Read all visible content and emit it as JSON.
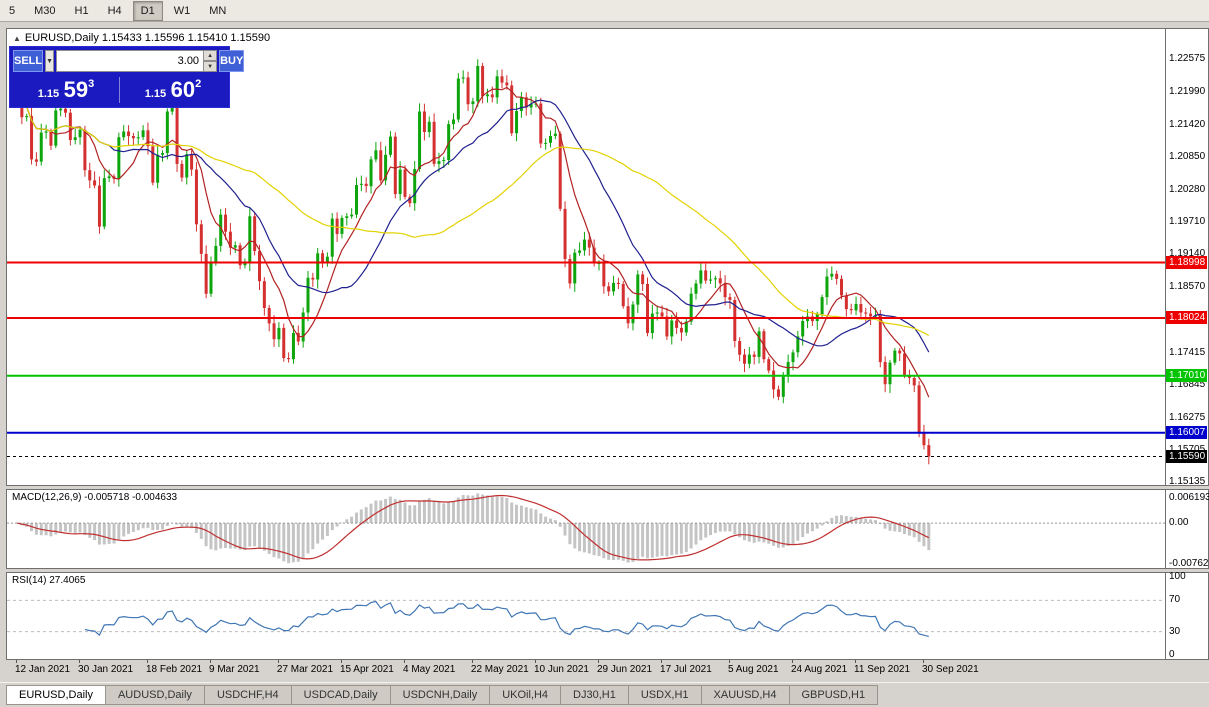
{
  "toolbar": {
    "timeframes": [
      {
        "label": "5",
        "active": false
      },
      {
        "label": "M30",
        "active": false
      },
      {
        "label": "H1",
        "active": false
      },
      {
        "label": "H4",
        "active": false
      },
      {
        "label": "D1",
        "active": true
      },
      {
        "label": "W1",
        "active": false
      },
      {
        "label": "MN",
        "active": false
      }
    ]
  },
  "chart_title": {
    "icon": "▲",
    "text": "EURUSD,Daily 1.15433 1.15596 1.15410 1.15590"
  },
  "trade_panel": {
    "sell_label": "SELL",
    "buy_label": "BUY",
    "volume": "3.00",
    "sell_price": {
      "small": "1.15",
      "big": "59",
      "sup": "3"
    },
    "buy_price": {
      "small": "1.15",
      "big": "60",
      "sup": "2"
    }
  },
  "chart_data": {
    "type": "candlestick",
    "symbol": "EURUSD",
    "period": "Daily",
    "price_top": 1.231,
    "price_bottom": 1.1509,
    "candle_up_color": "#0CA50C",
    "candle_down_color": "#D43030",
    "first_open": 1.224,
    "closes": [
      1.2207,
      1.2155,
      1.2157,
      1.2081,
      1.2077,
      1.2128,
      1.213,
      1.2105,
      1.2167,
      1.217,
      1.2163,
      1.2115,
      1.212,
      1.2133,
      1.2062,
      1.2044,
      1.2035,
      1.1963,
      1.2048,
      1.2051,
      1.2047,
      1.212,
      1.213,
      1.2122,
      1.2118,
      1.212,
      1.2132,
      1.2104,
      1.204,
      1.2089,
      1.2092,
      1.2165,
      1.2176,
      1.2073,
      1.2049,
      1.209,
      1.2063,
      1.1967,
      1.1915,
      1.1845,
      1.19,
      1.1929,
      1.1984,
      1.1954,
      1.1926,
      1.193,
      1.1895,
      1.19,
      1.1981,
      1.192,
      1.1867,
      1.182,
      1.1793,
      1.1765,
      1.1785,
      1.1732,
      1.173,
      1.1776,
      1.1761,
      1.1812,
      1.1873,
      1.187,
      1.1916,
      1.1899,
      1.191,
      1.1977,
      1.195,
      1.1978,
      1.1981,
      1.1984,
      1.2036,
      1.2038,
      1.2034,
      1.2081,
      1.2097,
      1.2044,
      1.2089,
      1.2121,
      1.202,
      1.2063,
      1.2015,
      1.2004,
      1.2064,
      1.2165,
      1.2129,
      1.2147,
      1.2073,
      1.2078,
      1.208,
      1.2143,
      1.2151,
      1.2223,
      1.2225,
      1.2178,
      1.2183,
      1.2245,
      1.2192,
      1.2195,
      1.219,
      1.2227,
      1.2216,
      1.2211,
      1.2127,
      1.2166,
      1.219,
      1.2172,
      1.2178,
      1.2179,
      1.2109,
      1.211,
      1.2122,
      1.2126,
      1.1994,
      1.1906,
      1.1863,
      1.1917,
      1.1921,
      1.194,
      1.1926,
      1.1898,
      1.1899,
      1.1858,
      1.1849,
      1.1864,
      1.1862,
      1.1823,
      1.1793,
      1.1826,
      1.1879,
      1.1862,
      1.1776,
      1.181,
      1.1812,
      1.1805,
      1.177,
      1.1798,
      1.1785,
      1.1777,
      1.1796,
      1.1845,
      1.1863,
      1.1886,
      1.1868,
      1.187,
      1.1872,
      1.1863,
      1.1839,
      1.1834,
      1.1762,
      1.1738,
      1.1722,
      1.1738,
      1.1734,
      1.1779,
      1.173,
      1.171,
      1.1677,
      1.1664,
      1.17,
      1.1725,
      1.1742,
      1.177,
      1.1797,
      1.1805,
      1.1797,
      1.1809,
      1.1839,
      1.1875,
      1.188,
      1.1871,
      1.1842,
      1.1818,
      1.1816,
      1.1827,
      1.1812,
      1.181,
      1.1805,
      1.1807,
      1.1725,
      1.1686,
      1.1724,
      1.1745,
      1.174,
      1.1702,
      1.1697,
      1.1684,
      1.16,
      1.1579,
      1.1559
    ],
    "moving_averages": [
      {
        "period": 8,
        "color": "#B22222"
      },
      {
        "period": 20,
        "color": "#20208F"
      },
      {
        "period": 50,
        "color": "#E3D200"
      }
    ],
    "y_axis_ticks": [
      "1.22575",
      "1.21990",
      "1.21420",
      "1.20850",
      "1.20280",
      "1.19710",
      "1.19140",
      "1.18570",
      "1.17415",
      "1.16845",
      "1.16275",
      "1.15705",
      "1.15135"
    ],
    "levels": [
      {
        "price": 1.18998,
        "label": "1.18998",
        "color": "#EE0000",
        "style": "solid",
        "width": 2
      },
      {
        "price": 1.18024,
        "label": "1.18024",
        "color": "#EE0000",
        "style": "solid",
        "width": 2
      },
      {
        "price": 1.1701,
        "label": "1.17010",
        "color": "#00C400",
        "style": "solid",
        "width": 2
      },
      {
        "price": 1.16007,
        "label": "1.16007",
        "color": "#0000CC",
        "style": "solid",
        "width": 2
      },
      {
        "price": 1.1559,
        "label": "1.15590",
        "color": "#000000",
        "style": "dashed",
        "width": 1
      }
    ],
    "x_labels": [
      {
        "label": "12 Jan 2021",
        "index": 0
      },
      {
        "label": "30 Jan 2021",
        "index": 13
      },
      {
        "label": "18 Feb 2021",
        "index": 27
      },
      {
        "label": "9 Mar 2021",
        "index": 40
      },
      {
        "label": "27 Mar 2021",
        "index": 54
      },
      {
        "label": "15 Apr 2021",
        "index": 67
      },
      {
        "label": "4 May 2021",
        "index": 80
      },
      {
        "label": "22 May 2021",
        "index": 94
      },
      {
        "label": "10 Jun 2021",
        "index": 107
      },
      {
        "label": "29 Jun 2021",
        "index": 120
      },
      {
        "label": "17 Jul 2021",
        "index": 133
      },
      {
        "label": "5 Aug 2021",
        "index": 147
      },
      {
        "label": "24 Aug 2021",
        "index": 160
      },
      {
        "label": "11 Sep 2021",
        "index": 173
      },
      {
        "label": "30 Sep 2021",
        "index": 187
      }
    ],
    "indicators": {
      "macd": {
        "label": "MACD(12,26,9)",
        "value_text": "-0.005718 -0.004633",
        "fast": 12,
        "slow": 26,
        "signal": 9,
        "axis_labels": [
          "0.006193",
          "0.00",
          "-0.00762"
        ],
        "hist_color": "#C4C4C4",
        "signal_color": "#C03030"
      },
      "rsi": {
        "label": "RSI(14)",
        "value_text": "27.4065",
        "period": 14,
        "levels": [
          70,
          30
        ],
        "axis_labels": [
          "100",
          "70",
          "30",
          "0"
        ],
        "line_color": "#4076B4"
      }
    }
  },
  "tabs": [
    {
      "label": "EURUSD,Daily",
      "active": true
    },
    {
      "label": "AUDUSD,Daily",
      "active": false
    },
    {
      "label": "USDCHF,H4",
      "active": false
    },
    {
      "label": "USDCAD,Daily",
      "active": false
    },
    {
      "label": "USDCNH,Daily",
      "active": false
    },
    {
      "label": "UKOil,H4",
      "active": false
    },
    {
      "label": "DJ30,H1",
      "active": false
    },
    {
      "label": "USDX,H1",
      "active": false
    },
    {
      "label": "XAUUSD,H4",
      "active": false
    },
    {
      "label": "GBPUSD,H1",
      "active": false
    }
  ]
}
